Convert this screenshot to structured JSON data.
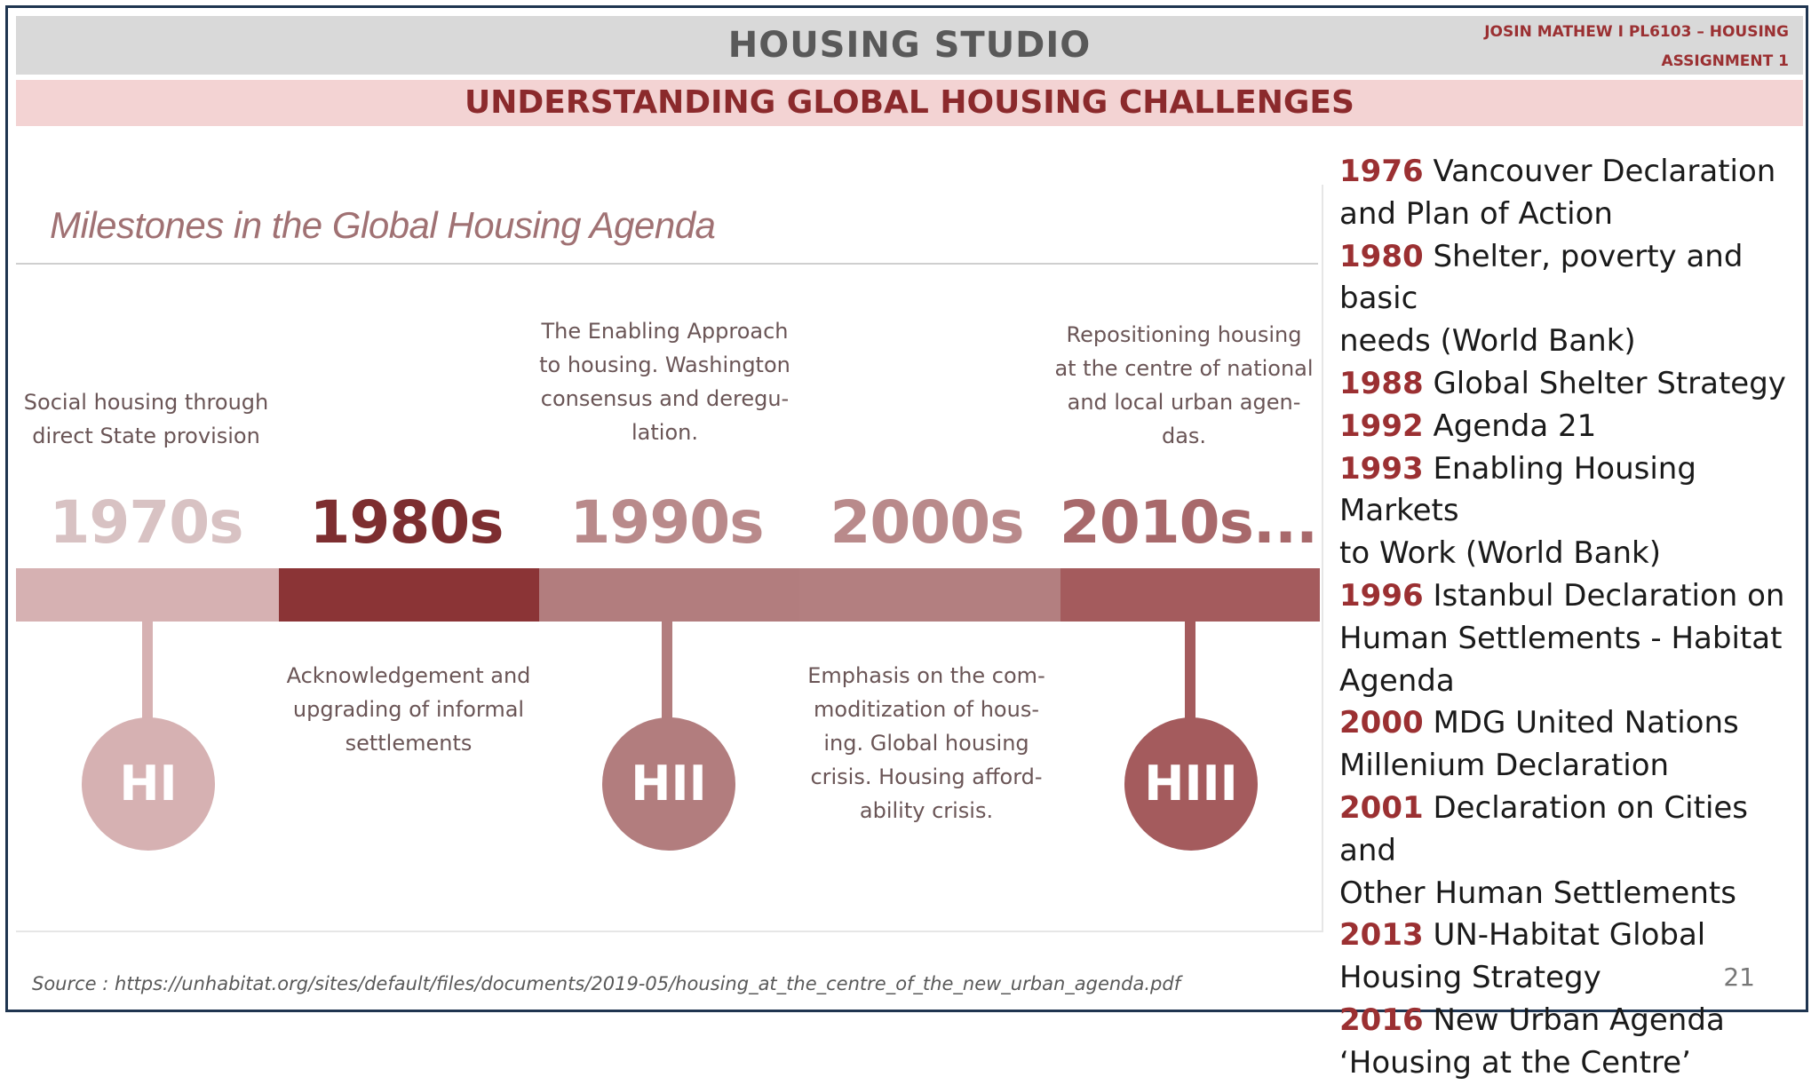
{
  "header": {
    "title": "HOUSING STUDIO",
    "author_line1": "JOSIN MATHEW I PL6103 – HOUSING",
    "author_line2": "ASSIGNMENT 1",
    "subtitle": "UNDERSTANDING GLOBAL HOUSING CHALLENGES"
  },
  "diagram": {
    "title": "Milestones in the Global Housing Agenda",
    "decades": [
      "1970s",
      "1980s",
      "1990s",
      "2000s",
      "2010s..."
    ],
    "descriptions_top": {
      "d1970": [
        "Social housing through",
        "direct State provision"
      ],
      "d1990": [
        "The Enabling Approach",
        "to housing. Washington",
        "consensus and deregu-",
        "lation."
      ],
      "d2010": [
        "Repositioning housing",
        "at the centre of national",
        "and local urban agen-",
        "das."
      ]
    },
    "descriptions_bottom": {
      "d1980": [
        "Acknowledgement and",
        "upgrading of informal",
        "settlements"
      ],
      "d2000": [
        "Emphasis on the com-",
        "moditization of hous-",
        "ing. Global housing",
        "crisis. Housing afford-",
        "ability crisis."
      ]
    },
    "phases": [
      "HI",
      "HII",
      "HIII"
    ],
    "colors": {
      "c1970": "#d6b1b2",
      "c1980": "#8b3436",
      "c1990": "#b27d7e",
      "c2000": "#b37f80",
      "c2010": "#a45b5d",
      "text1970": "#d8c2c3",
      "text1980": "#7d2e30",
      "text_other": "#b98a8b"
    }
  },
  "milestones": [
    {
      "year": "1976",
      "lines": [
        " Vancouver Declaration",
        "and Plan of Action"
      ]
    },
    {
      "year": "1980",
      "lines": [
        " Shelter, poverty and basic",
        "needs (World Bank)"
      ]
    },
    {
      "year": "1988",
      "lines": [
        " Global Shelter Strategy"
      ]
    },
    {
      "year": "1992",
      "lines": [
        " Agenda 21"
      ]
    },
    {
      "year": "1993",
      "lines": [
        " Enabling Housing Markets",
        "to Work (World Bank)"
      ]
    },
    {
      "year": "1996",
      "lines": [
        " Istanbul Declaration on",
        "Human Settlements - Habitat",
        "Agenda"
      ]
    },
    {
      "year": "2000",
      "lines": [
        " MDG United Nations",
        "Millenium Declaration"
      ]
    },
    {
      "year": "2001",
      "lines": [
        " Declaration on Cities and",
        "Other Human Settlements"
      ]
    },
    {
      "year": "2013",
      "lines": [
        " UN-Habitat Global",
        "Housing Strategy"
      ]
    },
    {
      "year": "2016",
      "lines": [
        " New Urban Agenda",
        "‘Housing at the Centre’"
      ]
    }
  ],
  "footer": {
    "source": "Source : https://unhabitat.org/sites/default/files/documents/2019-05/housing_at_the_centre_of_the_new_urban_agenda.pdf",
    "page_number": "21"
  }
}
